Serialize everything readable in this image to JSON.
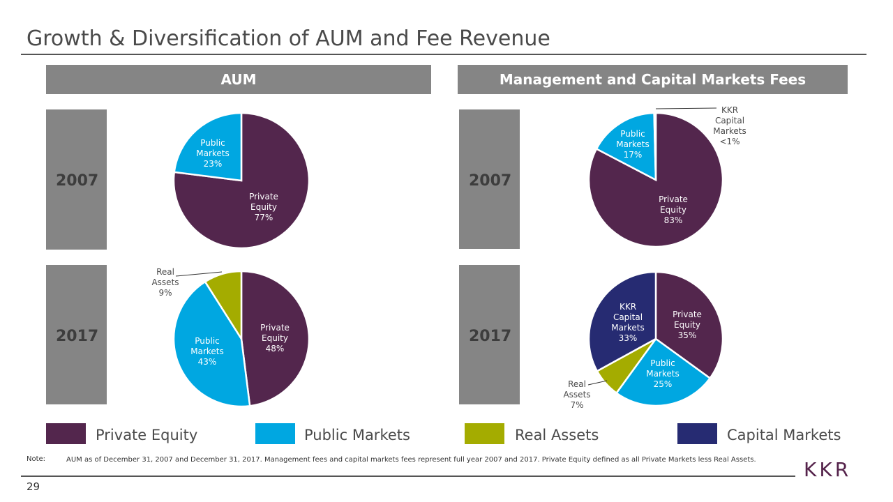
{
  "title": "Growth & Diversification of AUM and Fee Revenue",
  "headers": {
    "aum": "AUM",
    "fees": "Management and Capital Markets Fees"
  },
  "years": {
    "y2007": "2007",
    "y2017": "2017"
  },
  "colors": {
    "private_equity": "#53264d",
    "public_markets": "#00a7e1",
    "real_assets": "#a4ac00",
    "capital_markets": "#262b72"
  },
  "chart_data": [
    {
      "type": "pie",
      "panel": "AUM",
      "year": "2007",
      "slices": [
        {
          "name": "Private Equity",
          "value": 77,
          "label": [
            "Private",
            "Equity",
            "77%"
          ],
          "color": "#53264d"
        },
        {
          "name": "Public Markets",
          "value": 23,
          "label": [
            "Public",
            "Markets",
            "23%"
          ],
          "color": "#00a7e1"
        }
      ]
    },
    {
      "type": "pie",
      "panel": "AUM",
      "year": "2017",
      "slices": [
        {
          "name": "Private Equity",
          "value": 48,
          "label": [
            "Private",
            "Equity",
            "48%"
          ],
          "color": "#53264d"
        },
        {
          "name": "Public Markets",
          "value": 43,
          "label": [
            "Public",
            "Markets",
            "43%"
          ],
          "color": "#00a7e1"
        },
        {
          "name": "Real Assets",
          "value": 9,
          "label": [
            "Real",
            "Assets",
            "9%"
          ],
          "color": "#a4ac00"
        }
      ]
    },
    {
      "type": "pie",
      "panel": "Management and Capital Markets Fees",
      "year": "2007",
      "slices": [
        {
          "name": "Private Equity",
          "value": 83,
          "label": [
            "Private",
            "Equity",
            "83%"
          ],
          "color": "#53264d"
        },
        {
          "name": "Public Markets",
          "value": 17,
          "label": [
            "Public",
            "Markets",
            "17%"
          ],
          "color": "#00a7e1"
        },
        {
          "name": "KKR Capital Markets",
          "value": 0.4,
          "label": [
            "KKR",
            "Capital",
            "Markets",
            "<1%"
          ],
          "color": "#262b72"
        }
      ]
    },
    {
      "type": "pie",
      "panel": "Management and Capital Markets Fees",
      "year": "2017",
      "slices": [
        {
          "name": "Private Equity",
          "value": 35,
          "label": [
            "Private",
            "Equity",
            "35%"
          ],
          "color": "#53264d"
        },
        {
          "name": "Public Markets",
          "value": 25,
          "label": [
            "Public",
            "Markets",
            "25%"
          ],
          "color": "#00a7e1"
        },
        {
          "name": "Real Assets",
          "value": 7,
          "label": [
            "Real",
            "Assets",
            "7%"
          ],
          "color": "#a4ac00"
        },
        {
          "name": "KKR Capital Markets",
          "value": 33,
          "label": [
            "KKR",
            "Capital",
            "Markets",
            "33%"
          ],
          "color": "#262b72"
        }
      ]
    }
  ],
  "legend": [
    {
      "label": "Private Equity",
      "color": "#53264d"
    },
    {
      "label": "Public Markets",
      "color": "#00a7e1"
    },
    {
      "label": "Real Assets",
      "color": "#a4ac00"
    },
    {
      "label": "Capital Markets",
      "color": "#262b72"
    }
  ],
  "note": {
    "label": "Note:",
    "text": "AUM as of December 31, 2007 and December 31, 2017. Management fees and capital markets fees represent full year 2007 and 2017. Private Equity defined as all Private Markets less Real Assets."
  },
  "page_number": "29",
  "logo_text": "KKR"
}
